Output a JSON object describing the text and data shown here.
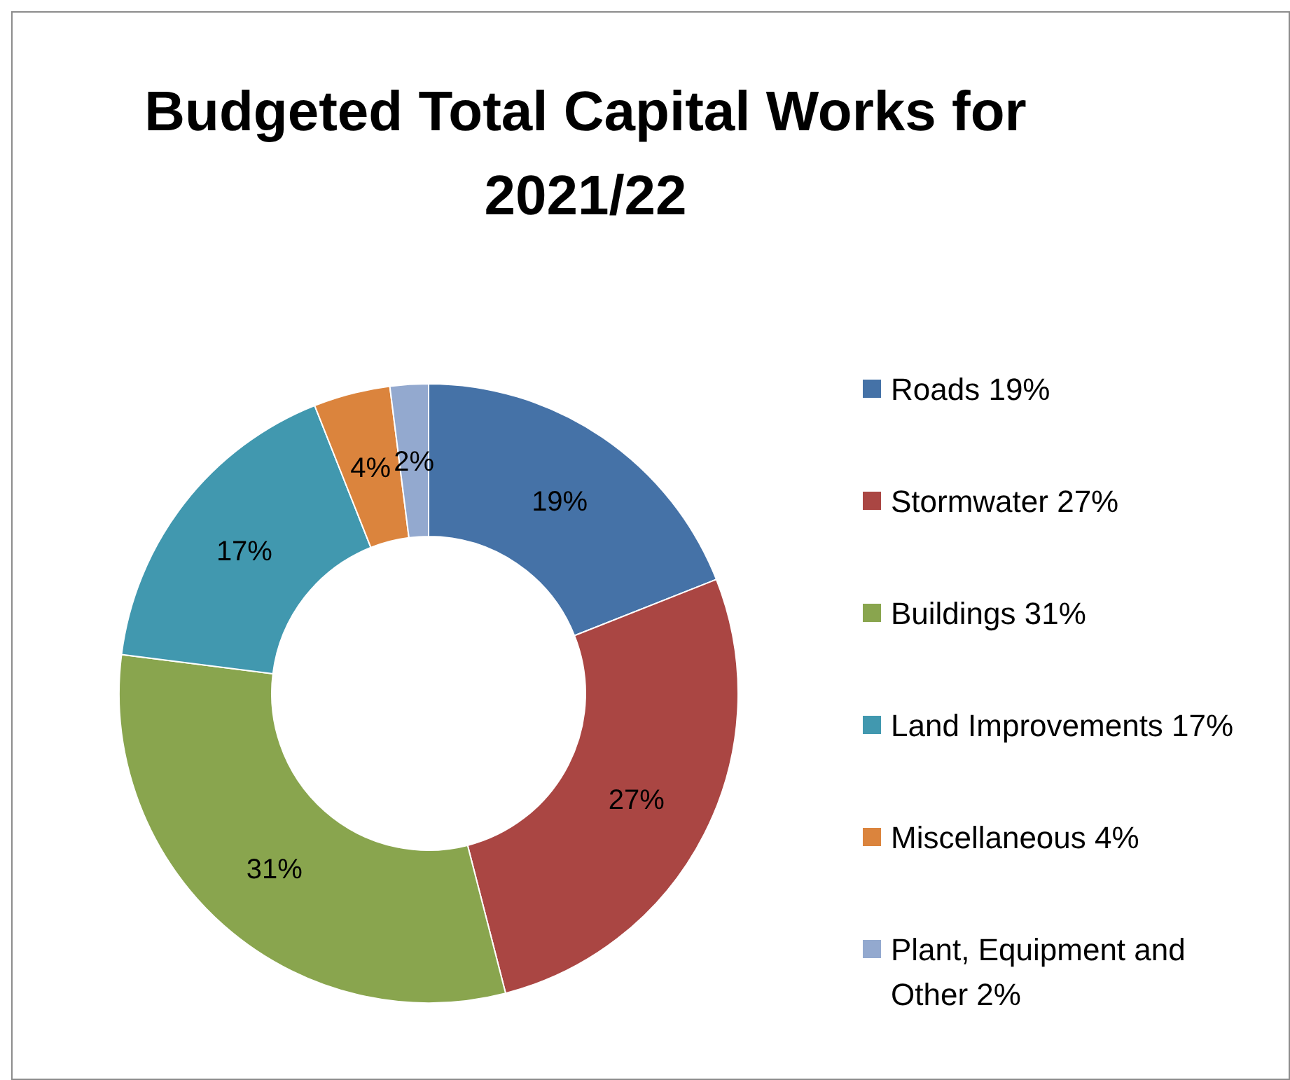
{
  "chart_data": {
    "type": "donut",
    "title": "Budgeted Total Capital Works for 2021/22",
    "categories": [
      "Roads 19%",
      "Stormwater 27%",
      "Buildings 31%",
      "Land Improvements 17%",
      "Miscellaneous 4%",
      "Plant, Equipment and Other 2%"
    ],
    "values": [
      19,
      27,
      31,
      17,
      4,
      2
    ],
    "value_labels": [
      "19%",
      "27%",
      "31%",
      "17%",
      "4%",
      "2%"
    ],
    "colors": [
      "#4572a7",
      "#aa4643",
      "#89a54e",
      "#4198af",
      "#db843d",
      "#93a9cf"
    ],
    "legend": "right"
  }
}
